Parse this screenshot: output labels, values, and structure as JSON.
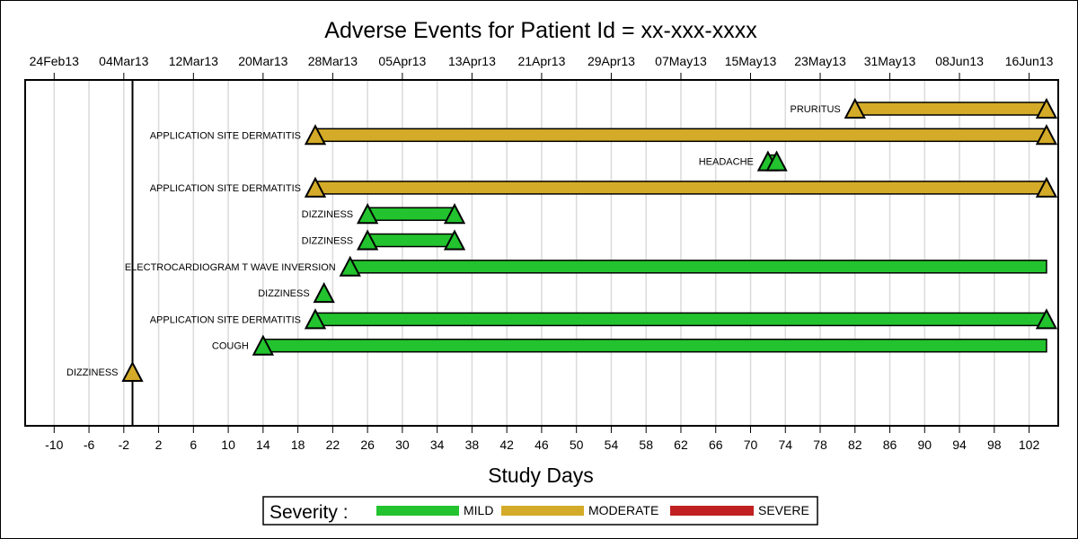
{
  "chart_data": {
    "type": "bar",
    "title": "Adverse Events for Patient Id = xx-xxx-xxxx",
    "xlabel": "Study Days",
    "x_range": [
      -12,
      107
    ],
    "day_ticks": [
      -10,
      -6,
      -2,
      2,
      6,
      10,
      14,
      18,
      22,
      26,
      30,
      34,
      38,
      42,
      46,
      50,
      54,
      58,
      62,
      66,
      70,
      74,
      78,
      82,
      86,
      90,
      94,
      98,
      102
    ],
    "date_ticks": [
      {
        "label": "24Feb13",
        "day": -10
      },
      {
        "label": "04Mar13",
        "day": -2
      },
      {
        "label": "12Mar13",
        "day": 6
      },
      {
        "label": "20Mar13",
        "day": 14
      },
      {
        "label": "28Mar13",
        "day": 22
      },
      {
        "label": "05Apr13",
        "day": 30
      },
      {
        "label": "13Apr13",
        "day": 38
      },
      {
        "label": "21Apr13",
        "day": 46
      },
      {
        "label": "29Apr13",
        "day": 54
      },
      {
        "label": "07May13",
        "day": 62
      },
      {
        "label": "15May13",
        "day": 70
      },
      {
        "label": "23May13",
        "day": 78
      },
      {
        "label": "31May13",
        "day": 86
      },
      {
        "label": "08Jun13",
        "day": 94
      },
      {
        "label": "16Jun13",
        "day": 102
      }
    ],
    "reference_line_day": -1,
    "grid": true,
    "severity_colors": {
      "MILD": "#22c32e",
      "MODERATE": "#d4ab28",
      "SEVERE": "#c02020"
    },
    "events": [
      {
        "label": "PRURITUS",
        "start": 82,
        "end": 104,
        "severity": "MODERATE",
        "start_marker": true,
        "end_marker": true
      },
      {
        "label": "APPLICATION SITE DERMATITIS",
        "start": 20,
        "end": 104,
        "severity": "MODERATE",
        "start_marker": true,
        "end_marker": true
      },
      {
        "label": "HEADACHE",
        "start": 72,
        "end": 73,
        "severity": "MILD",
        "start_marker": true,
        "end_marker": true
      },
      {
        "label": "APPLICATION SITE DERMATITIS",
        "start": 20,
        "end": 104,
        "severity": "MODERATE",
        "start_marker": true,
        "end_marker": true
      },
      {
        "label": "DIZZINESS",
        "start": 26,
        "end": 36,
        "severity": "MILD",
        "start_marker": true,
        "end_marker": true
      },
      {
        "label": "DIZZINESS",
        "start": 26,
        "end": 36,
        "severity": "MILD",
        "start_marker": true,
        "end_marker": true
      },
      {
        "label": "ELECTROCARDIOGRAM T WAVE INVERSION",
        "start": 24,
        "end": 104,
        "severity": "MILD",
        "start_marker": true,
        "end_marker": false
      },
      {
        "label": "DIZZINESS",
        "start": 21,
        "end": 21,
        "severity": "MILD",
        "start_marker": true,
        "end_marker": false
      },
      {
        "label": "APPLICATION SITE DERMATITIS",
        "start": 20,
        "end": 104,
        "severity": "MILD",
        "start_marker": true,
        "end_marker": true
      },
      {
        "label": "COUGH",
        "start": 14,
        "end": 104,
        "severity": "MILD",
        "start_marker": true,
        "end_marker": false
      },
      {
        "label": "DIZZINESS",
        "start": -1,
        "end": -1,
        "severity": "MODERATE",
        "start_marker": true,
        "end_marker": false
      }
    ],
    "legend": {
      "title": "Severity :",
      "placement": "bottom-center",
      "items": [
        {
          "label": "MILD",
          "color": "#22c32e"
        },
        {
          "label": "MODERATE",
          "color": "#d4ab28"
        },
        {
          "label": "SEVERE",
          "color": "#c02020"
        }
      ]
    }
  }
}
